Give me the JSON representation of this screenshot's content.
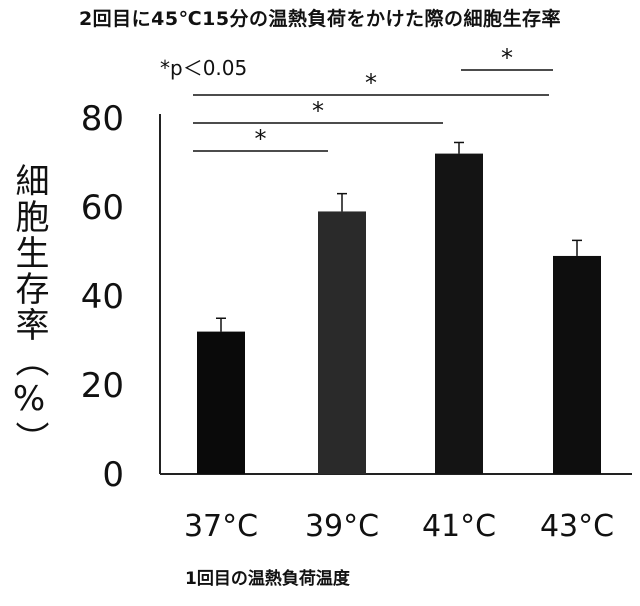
{
  "chart_data": {
    "type": "bar",
    "title": "2回目に45℃15分の温熱負荷をかけた際の細胞生存率",
    "ylabel": "細胞生存率（%）",
    "xlabel": "1回目の温熱負荷温度",
    "significance_note": "*p＜0.05",
    "categories": [
      "37°C",
      "39°C",
      "41°C",
      "43°C"
    ],
    "values": [
      32,
      59,
      72,
      49
    ],
    "errors": [
      3,
      4,
      2.5,
      3.5
    ],
    "ylim": [
      0,
      80
    ],
    "yticks": [
      "0",
      "20",
      "40",
      "60",
      "80"
    ],
    "bar_colors": [
      "#0a0a0a",
      "#2a2a2a",
      "#141414",
      "#0e0e0e"
    ],
    "significance": [
      {
        "from": 0,
        "to": 1,
        "label": "*"
      },
      {
        "from": 0,
        "to": 2,
        "label": "*"
      },
      {
        "from": 0,
        "to": 3,
        "label": "*"
      },
      {
        "from": 2,
        "to": 3,
        "label": "*"
      }
    ],
    "grid": false,
    "legend": "none"
  }
}
